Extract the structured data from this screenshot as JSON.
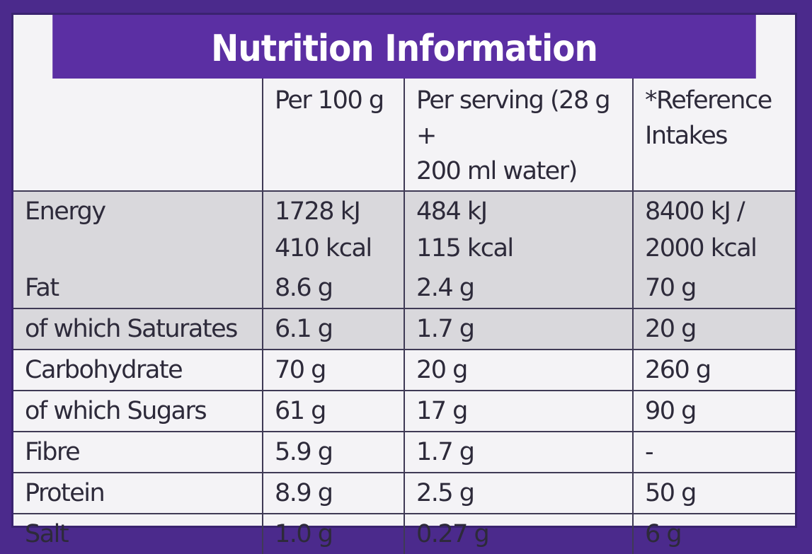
{
  "title": "Nutrition Information",
  "headers": [
    "",
    "Per 100 g",
    "Per serving (28 g + 200 ml water)",
    "*Reference Intakes"
  ],
  "header_lines": {
    "per100": [
      "Per 100 g"
    ],
    "serving": [
      "Per serving (28 g +",
      "200 ml water)"
    ],
    "ri": [
      "*Reference",
      "Intakes"
    ]
  },
  "energy": {
    "label": "Energy",
    "per100": [
      "1728 kJ",
      "410 kcal"
    ],
    "serving": [
      "484 kJ",
      "115 kcal"
    ],
    "ri": [
      "8400 kJ /",
      "2000 kcal"
    ]
  },
  "rows": [
    {
      "label": "Fat",
      "per100": "8.6 g",
      "serving": "2.4 g",
      "ri": "70 g"
    },
    {
      "label": "of which Saturates",
      "per100": "6.1 g",
      "serving": "1.7 g",
      "ri": "20 g"
    },
    {
      "label": "Carbohydrate",
      "per100": "70 g",
      "serving": "20 g",
      "ri": "260 g"
    },
    {
      "label": "of which Sugars",
      "per100": "61 g",
      "serving": "17 g",
      "ri": "90 g"
    },
    {
      "label": "Fibre",
      "per100": "5.9 g",
      "serving": "1.7 g",
      "ri": "-"
    },
    {
      "label": "Protein",
      "per100": "8.9 g",
      "serving": "2.5 g",
      "ri": "50 g"
    },
    {
      "label": "Salt",
      "per100": "1.0 g",
      "serving": "0.27 g",
      "ri": "6 g"
    }
  ],
  "colors": {
    "brand_purple": "#5b2fa3",
    "shaded_row": "#d9d8dc"
  }
}
